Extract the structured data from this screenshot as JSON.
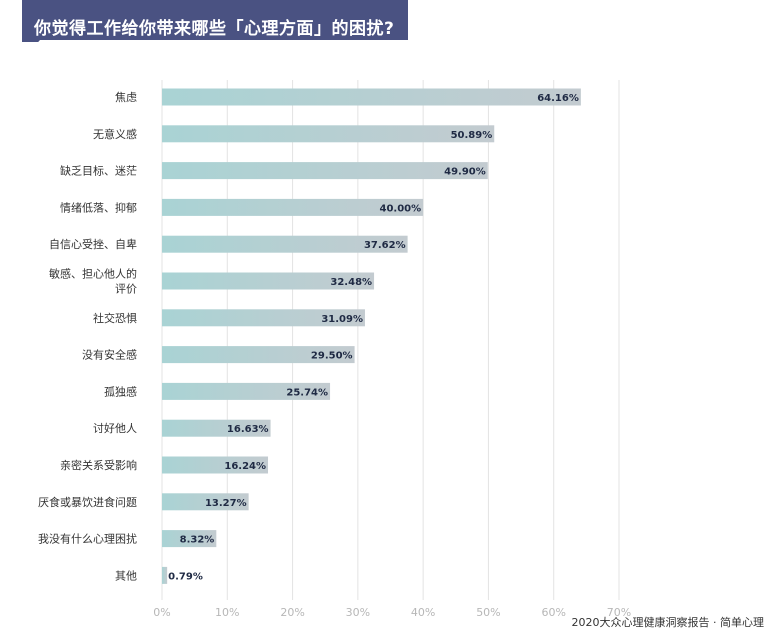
{
  "title": "你觉得工作给你带来哪些「心理方面」的困扰?",
  "footer": "2020大众心理健康洞察报告 · 简单心理",
  "colors": {
    "banner": "#4a5282",
    "bar_start": "#a9d3d4",
    "bar_end": "#c3cbd0",
    "grid": "#e3e3e3",
    "tick": "#b7b7b7"
  },
  "chart_data": {
    "type": "bar",
    "orientation": "horizontal",
    "categories": [
      "焦虑",
      "无意义感",
      "缺乏目标、迷茫",
      "情绪低落、抑郁",
      "自信心受挫、自卑",
      "敏感、担心他人的评价",
      "社交恐惧",
      "没有安全感",
      "孤独感",
      "讨好他人",
      "亲密关系受影响",
      "厌食或暴饮进食问题",
      "我没有什么心理困扰",
      "其他"
    ],
    "category_lines": [
      [
        "焦虑"
      ],
      [
        "无意义感"
      ],
      [
        "缺乏目标、迷茫"
      ],
      [
        "情绪低落、抑郁"
      ],
      [
        "自信心受挫、自卑"
      ],
      [
        "敏感、担心他人的",
        "评价"
      ],
      [
        "社交恐惧"
      ],
      [
        "没有安全感"
      ],
      [
        "孤独感"
      ],
      [
        "讨好他人"
      ],
      [
        "亲密关系受影响"
      ],
      [
        "厌食或暴饮进食问题"
      ],
      [
        "我没有什么心理困扰"
      ],
      [
        "其他"
      ]
    ],
    "values": [
      64.16,
      50.89,
      49.9,
      40.0,
      37.62,
      32.48,
      31.09,
      29.5,
      25.74,
      16.63,
      16.24,
      13.27,
      8.32,
      0.79
    ],
    "value_labels": [
      "64.16%",
      "50.89%",
      "49.90%",
      "40.00%",
      "37.62%",
      "32.48%",
      "31.09%",
      "29.50%",
      "25.74%",
      "16.63%",
      "16.24%",
      "13.27%",
      "8.32%",
      "0.79%"
    ],
    "xticks": [
      0,
      10,
      20,
      30,
      40,
      50,
      60,
      70
    ],
    "xtick_labels": [
      "0%",
      "10%",
      "20%",
      "30%",
      "40%",
      "50%",
      "60%",
      "70%"
    ],
    "xlim": [
      0,
      70
    ],
    "grid": true
  }
}
